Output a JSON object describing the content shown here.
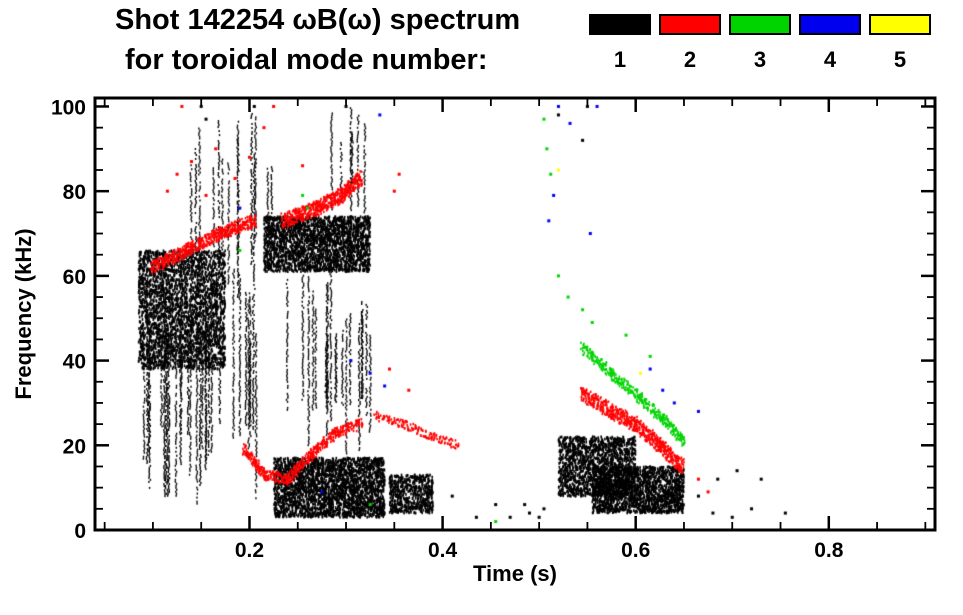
{
  "chart_data": {
    "type": "scatter",
    "title": "Shot 142254 ωB(ω) spectrum",
    "subtitle": "for toroidal mode number:",
    "xlabel": "Time (s)",
    "ylabel": "Frequency (kHz)",
    "xlim": [
      0.04,
      0.91
    ],
    "ylim": [
      0,
      102
    ],
    "xticks": [
      0.2,
      0.4,
      0.6,
      0.8
    ],
    "xminor": 0.05,
    "yticks": [
      0,
      20,
      40,
      60,
      80,
      100
    ],
    "yminor": 5,
    "grid": false,
    "legend_position": "top-right",
    "legend": [
      {
        "label": "1",
        "color": "#000000"
      },
      {
        "label": "2",
        "color": "#ff0000"
      },
      {
        "label": "3",
        "color": "#00d400"
      },
      {
        "label": "4",
        "color": "#0000ee"
      },
      {
        "label": "5",
        "color": "#ffff00"
      }
    ],
    "series": [
      {
        "name": "n=1",
        "color": "#000000",
        "segments": [
          {
            "kind": "blob",
            "t": [
              0.085,
              0.175
            ],
            "f": [
              38,
              66
            ],
            "n": 2800
          },
          {
            "kind": "streaks",
            "t": [
              0.09,
              0.21
            ],
            "f": [
              6,
              62
            ],
            "lines": 30
          },
          {
            "kind": "streaks",
            "t": [
              0.13,
              0.225
            ],
            "f": [
              55,
              100
            ],
            "lines": 14
          },
          {
            "kind": "blob",
            "t": [
              0.215,
              0.325
            ],
            "f": [
              61,
              74
            ],
            "n": 2400
          },
          {
            "kind": "blob",
            "t": [
              0.225,
              0.34
            ],
            "f": [
              3,
              17
            ],
            "n": 2800
          },
          {
            "kind": "streaks",
            "t": [
              0.235,
              0.33
            ],
            "f": [
              15,
              62
            ],
            "lines": 20
          },
          {
            "kind": "streaks",
            "t": [
              0.285,
              0.325
            ],
            "f": [
              72,
              100
            ],
            "lines": 7
          },
          {
            "kind": "blob",
            "t": [
              0.345,
              0.39
            ],
            "f": [
              4,
              13
            ],
            "n": 600
          },
          {
            "kind": "blob",
            "t": [
              0.52,
              0.6
            ],
            "f": [
              8,
              22
            ],
            "n": 1600
          },
          {
            "kind": "blob",
            "t": [
              0.555,
              0.65
            ],
            "f": [
              4,
              15
            ],
            "n": 1800
          },
          {
            "kind": "dots",
            "pts": [
              [
                0.15,
                100
              ],
              [
                0.155,
                97
              ],
              [
                0.205,
                100
              ],
              [
                0.3,
                100
              ],
              [
                0.41,
                8
              ],
              [
                0.435,
                3
              ],
              [
                0.455,
                6
              ],
              [
                0.47,
                3
              ],
              [
                0.485,
                6
              ],
              [
                0.49,
                4
              ],
              [
                0.5,
                3
              ],
              [
                0.505,
                5
              ],
              [
                0.52,
                98
              ],
              [
                0.545,
                92
              ],
              [
                0.55,
                100
              ],
              [
                0.665,
                8
              ],
              [
                0.68,
                4
              ],
              [
                0.685,
                12
              ],
              [
                0.7,
                3
              ],
              [
                0.705,
                14
              ],
              [
                0.72,
                5
              ],
              [
                0.73,
                12
              ],
              [
                0.755,
                4
              ]
            ]
          }
        ]
      },
      {
        "name": "n=2",
        "color": "#ff0000",
        "segments": [
          {
            "kind": "trace",
            "pts": [
              [
                0.1,
                62
              ],
              [
                0.135,
                66
              ],
              [
                0.17,
                70
              ],
              [
                0.205,
                73
              ]
            ],
            "thick": 3,
            "density": 14
          },
          {
            "kind": "trace",
            "pts": [
              [
                0.235,
                73
              ],
              [
                0.27,
                76
              ],
              [
                0.295,
                79
              ],
              [
                0.315,
                83
              ]
            ],
            "thick": 3.5,
            "density": 16
          },
          {
            "kind": "trace",
            "pts": [
              [
                0.195,
                19
              ],
              [
                0.215,
                13
              ],
              [
                0.24,
                12
              ],
              [
                0.265,
                18
              ],
              [
                0.29,
                23
              ],
              [
                0.315,
                25
              ]
            ],
            "thick": 2.5,
            "density": 10
          },
          {
            "kind": "trace",
            "pts": [
              [
                0.33,
                27
              ],
              [
                0.36,
                25
              ],
              [
                0.39,
                22
              ],
              [
                0.415,
                20
              ]
            ],
            "thick": 2,
            "density": 5
          },
          {
            "kind": "trace",
            "pts": [
              [
                0.545,
                32
              ],
              [
                0.575,
                28
              ],
              [
                0.6,
                25
              ],
              [
                0.625,
                20
              ],
              [
                0.648,
                15
              ]
            ],
            "thick": 3.5,
            "density": 14
          },
          {
            "kind": "dots",
            "pts": [
              [
                0.115,
                80
              ],
              [
                0.125,
                84
              ],
              [
                0.14,
                87
              ],
              [
                0.155,
                79
              ],
              [
                0.165,
                90
              ],
              [
                0.185,
                83
              ],
              [
                0.2,
                88
              ],
              [
                0.215,
                95
              ],
              [
                0.225,
                100
              ],
              [
                0.35,
                80
              ],
              [
                0.355,
                84
              ],
              [
                0.345,
                38
              ],
              [
                0.365,
                33
              ],
              [
                0.13,
                100
              ],
              [
                0.255,
                86
              ],
              [
                0.665,
                12
              ],
              [
                0.675,
                9
              ]
            ]
          }
        ]
      },
      {
        "name": "n=3",
        "color": "#00d400",
        "segments": [
          {
            "kind": "trace",
            "pts": [
              [
                0.545,
                43
              ],
              [
                0.575,
                37
              ],
              [
                0.605,
                31
              ],
              [
                0.63,
                26
              ],
              [
                0.65,
                21
              ]
            ],
            "thick": 2.5,
            "density": 8
          },
          {
            "kind": "dots",
            "pts": [
              [
                0.505,
                97
              ],
              [
                0.508,
                90
              ],
              [
                0.512,
                84
              ],
              [
                0.52,
                60
              ],
              [
                0.53,
                55
              ],
              [
                0.545,
                52
              ],
              [
                0.555,
                49
              ],
              [
                0.255,
                79
              ],
              [
                0.26,
                76
              ],
              [
                0.19,
                66
              ],
              [
                0.325,
                6
              ],
              [
                0.59,
                46
              ],
              [
                0.615,
                41
              ],
              [
                0.455,
                2
              ]
            ]
          }
        ]
      },
      {
        "name": "n=4",
        "color": "#0000ee",
        "segments": [
          {
            "kind": "dots",
            "pts": [
              [
                0.275,
                9
              ],
              [
                0.305,
                40
              ],
              [
                0.325,
                37
              ],
              [
                0.34,
                34
              ],
              [
                0.51,
                73
              ],
              [
                0.515,
                79
              ],
              [
                0.52,
                100
              ],
              [
                0.532,
                96
              ],
              [
                0.553,
                70
              ],
              [
                0.615,
                38
              ],
              [
                0.628,
                33
              ],
              [
                0.64,
                30
              ],
              [
                0.665,
                28
              ],
              [
                0.19,
                76
              ],
              [
                0.335,
                98
              ],
              [
                0.56,
                100
              ]
            ]
          }
        ]
      },
      {
        "name": "n=5",
        "color": "#ffff00",
        "segments": [
          {
            "kind": "dots",
            "pts": [
              [
                0.605,
                37
              ],
              [
                0.52,
                85
              ]
            ]
          }
        ]
      }
    ]
  }
}
